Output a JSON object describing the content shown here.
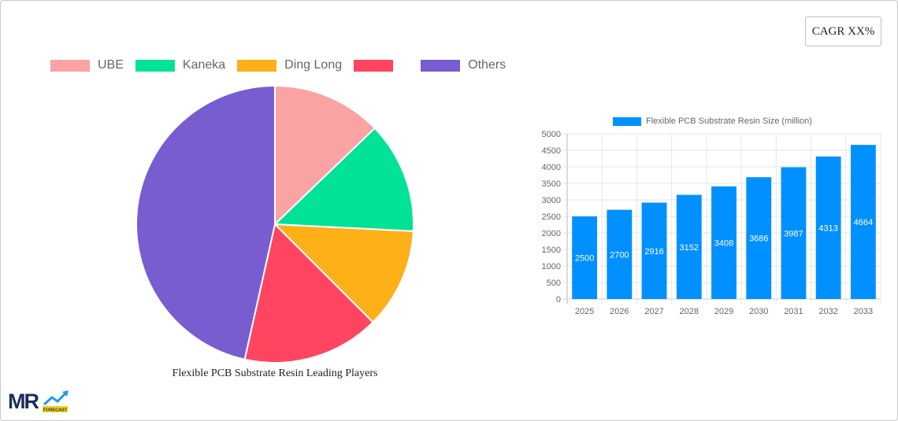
{
  "badge": {
    "cagr_label": "CAGR XX%"
  },
  "pie_section": {
    "title": "Flexible PCB Substrate Resin Leading Players",
    "legend": [
      {
        "label": "UBE",
        "color": "#f9a3a4"
      },
      {
        "label": "Kaneka",
        "color": "#00e396"
      },
      {
        "label": "Ding Long",
        "color": "#feb019"
      },
      {
        "label": "",
        "color": "#ff4560"
      },
      {
        "label": "Others",
        "color": "#775dd0"
      }
    ]
  },
  "bar_section": {
    "legend_label": "Flexible PCB Substrate Resin Size (million)",
    "bar_color": "#0090ff"
  },
  "logo": {
    "text": "MR",
    "subtext": "FORECAST"
  },
  "chart_data": [
    {
      "type": "pie",
      "title": "Flexible PCB Substrate Resin Leading Players",
      "categories": [
        "UBE",
        "Kaneka",
        "Ding Long",
        "",
        "Others"
      ],
      "values": [
        12.8,
        13.0,
        11.7,
        16.0,
        46.5
      ],
      "colors": [
        "#f9a3a4",
        "#00e396",
        "#feb019",
        "#ff4560",
        "#775dd0"
      ],
      "legend_position": "top"
    },
    {
      "type": "bar",
      "title": "",
      "series": [
        {
          "name": "Flexible PCB Substrate Resin Size (million)",
          "values": [
            2500,
            2700,
            2916,
            3152,
            3408,
            3686,
            3987,
            4313,
            4664
          ]
        }
      ],
      "categories": [
        "2025",
        "2026",
        "2027",
        "2028",
        "2029",
        "2030",
        "2031",
        "2032",
        "2033"
      ],
      "xlabel": "",
      "ylabel": "",
      "ylim": [
        0,
        5000
      ],
      "yticks": [
        0,
        500,
        1000,
        1500,
        2000,
        2500,
        3000,
        3500,
        4000,
        4500,
        5000
      ],
      "grid": true,
      "data_labels": true,
      "legend_position": "top"
    }
  ]
}
